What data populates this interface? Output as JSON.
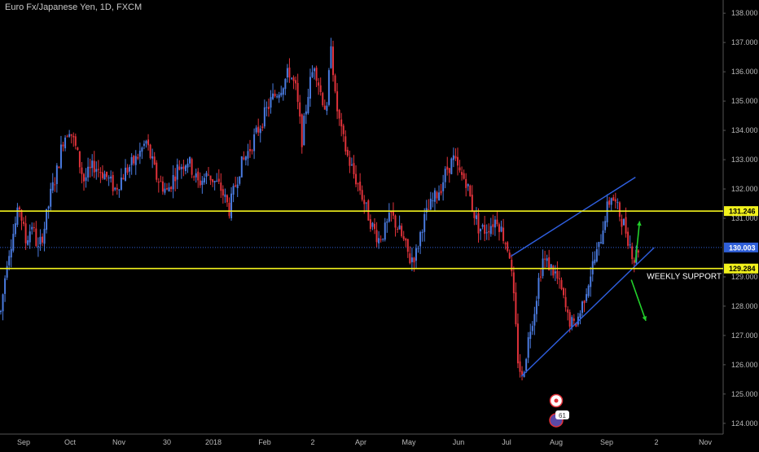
{
  "title": "Euro Fx/Japanese Yen, 1D, FXCM",
  "annotation": "WEEKLY SUPPORT",
  "colors": {
    "background": "#000000",
    "candle_up": "#4a7be0",
    "candle_down": "#e0323a",
    "hline": "#f2f21c",
    "last_price": "#2f5fd8",
    "channel": "#2f5fe0",
    "arrow": "#22d12b",
    "tick_text": "#b9b9b9",
    "divider": "#555555"
  },
  "chart_data": {
    "type": "candlestick",
    "title": "Euro Fx/Japanese Yen, 1D, FXCM",
    "xlabel": "",
    "ylabel": "",
    "ylim": [
      123.8,
      138.2
    ],
    "grid": false,
    "x_ticks": [
      "Sep",
      "Oct",
      "Nov",
      "30",
      "2018",
      "Feb",
      "2",
      "Apr",
      "May",
      "Jun",
      "Jul",
      "Aug",
      "Sep",
      "2",
      "Nov"
    ],
    "y_ticks": [
      "138.000",
      "137.000",
      "136.000",
      "135.000",
      "134.000",
      "133.000",
      "132.000",
      "131.000",
      "129.000",
      "128.000",
      "127.000",
      "126.000",
      "125.000",
      "124.000"
    ],
    "price_labels": [
      {
        "text": "131.246",
        "value": 131.246,
        "kind": "level"
      },
      {
        "text": "130.003",
        "value": 130.003,
        "kind": "last"
      },
      {
        "text": "129.284",
        "value": 129.284,
        "kind": "level"
      }
    ],
    "horizontal_levels": [
      131.246,
      129.284
    ],
    "last_price": 130.003,
    "path": [
      [
        0,
        127.8
      ],
      [
        3,
        129.6
      ],
      [
        6,
        130.5
      ],
      [
        9,
        131.4
      ],
      [
        12,
        130.2
      ],
      [
        15,
        130.8
      ],
      [
        18,
        129.9
      ],
      [
        21,
        130.7
      ],
      [
        24,
        131.8
      ],
      [
        27,
        132.6
      ],
      [
        30,
        133.7
      ],
      [
        33,
        134.1
      ],
      [
        36,
        133.4
      ],
      [
        40,
        132.3
      ],
      [
        45,
        132.8
      ],
      [
        50,
        132.5
      ],
      [
        55,
        132.0
      ],
      [
        60,
        132.6
      ],
      [
        65,
        133.0
      ],
      [
        70,
        133.6
      ],
      [
        75,
        132.4
      ],
      [
        80,
        131.9
      ],
      [
        85,
        132.7
      ],
      [
        90,
        133.0
      ],
      [
        95,
        132.2
      ],
      [
        100,
        132.5
      ],
      [
        106,
        132.0
      ],
      [
        110,
        131.3
      ],
      [
        115,
        132.7
      ],
      [
        120,
        133.4
      ],
      [
        125,
        134.2
      ],
      [
        130,
        135.0
      ],
      [
        135,
        135.5
      ],
      [
        139,
        136.0
      ],
      [
        142,
        135.4
      ],
      [
        145,
        133.7
      ],
      [
        148,
        135.3
      ],
      [
        151,
        136.3
      ],
      [
        154,
        135.3
      ],
      [
        157,
        134.6
      ],
      [
        159,
        137.1
      ],
      [
        161,
        135.1
      ],
      [
        164,
        133.9
      ],
      [
        167,
        133.1
      ],
      [
        170,
        132.5
      ],
      [
        173,
        132.0
      ],
      [
        176,
        131.3
      ],
      [
        179,
        130.7
      ],
      [
        182,
        130.3
      ],
      [
        185,
        130.6
      ],
      [
        188,
        131.1
      ],
      [
        191,
        130.7
      ],
      [
        194,
        130.2
      ],
      [
        197,
        129.6
      ],
      [
        200,
        129.8
      ],
      [
        203,
        130.8
      ],
      [
        206,
        131.3
      ],
      [
        209,
        131.7
      ],
      [
        212,
        132.1
      ],
      [
        215,
        132.7
      ],
      [
        218,
        133.0
      ],
      [
        221,
        132.5
      ],
      [
        224,
        132.3
      ],
      [
        227,
        131.4
      ],
      [
        230,
        130.7
      ],
      [
        233,
        130.6
      ],
      [
        236,
        130.8
      ],
      [
        239,
        131.0
      ],
      [
        242,
        130.4
      ],
      [
        245,
        129.8
      ],
      [
        247,
        128.2
      ],
      [
        249,
        126.2
      ],
      [
        251,
        125.5
      ],
      [
        253,
        126.4
      ],
      [
        255,
        127.3
      ],
      [
        257,
        127.9
      ],
      [
        259,
        128.9
      ],
      [
        261,
        129.6
      ],
      [
        264,
        129.4
      ],
      [
        267,
        129.1
      ],
      [
        270,
        128.5
      ],
      [
        273,
        127.6
      ],
      [
        276,
        127.3
      ],
      [
        279,
        127.8
      ],
      [
        282,
        128.6
      ],
      [
        285,
        129.4
      ],
      [
        288,
        130.0
      ],
      [
        291,
        131.1
      ],
      [
        294,
        131.8
      ],
      [
        297,
        131.3
      ],
      [
        300,
        130.8
      ],
      [
        303,
        130.1
      ],
      [
        305,
        129.6
      ],
      [
        307,
        130.0
      ]
    ],
    "channel": {
      "upper": [
        {
          "day": 246,
          "price": 129.7
        },
        {
          "day": 306,
          "price": 132.4
        }
      ],
      "lower": [
        {
          "day": 251,
          "price": 125.6
        },
        {
          "day": 315,
          "price": 130.0
        }
      ]
    },
    "arrows": [
      {
        "from": {
          "day": 306,
          "price": 129.5
        },
        "to": {
          "day": 308,
          "price": 130.9
        }
      },
      {
        "from": {
          "day": 304,
          "price": 128.9
        },
        "to": {
          "day": 311,
          "price": 127.5
        }
      }
    ]
  },
  "badge": {
    "count": "61"
  }
}
